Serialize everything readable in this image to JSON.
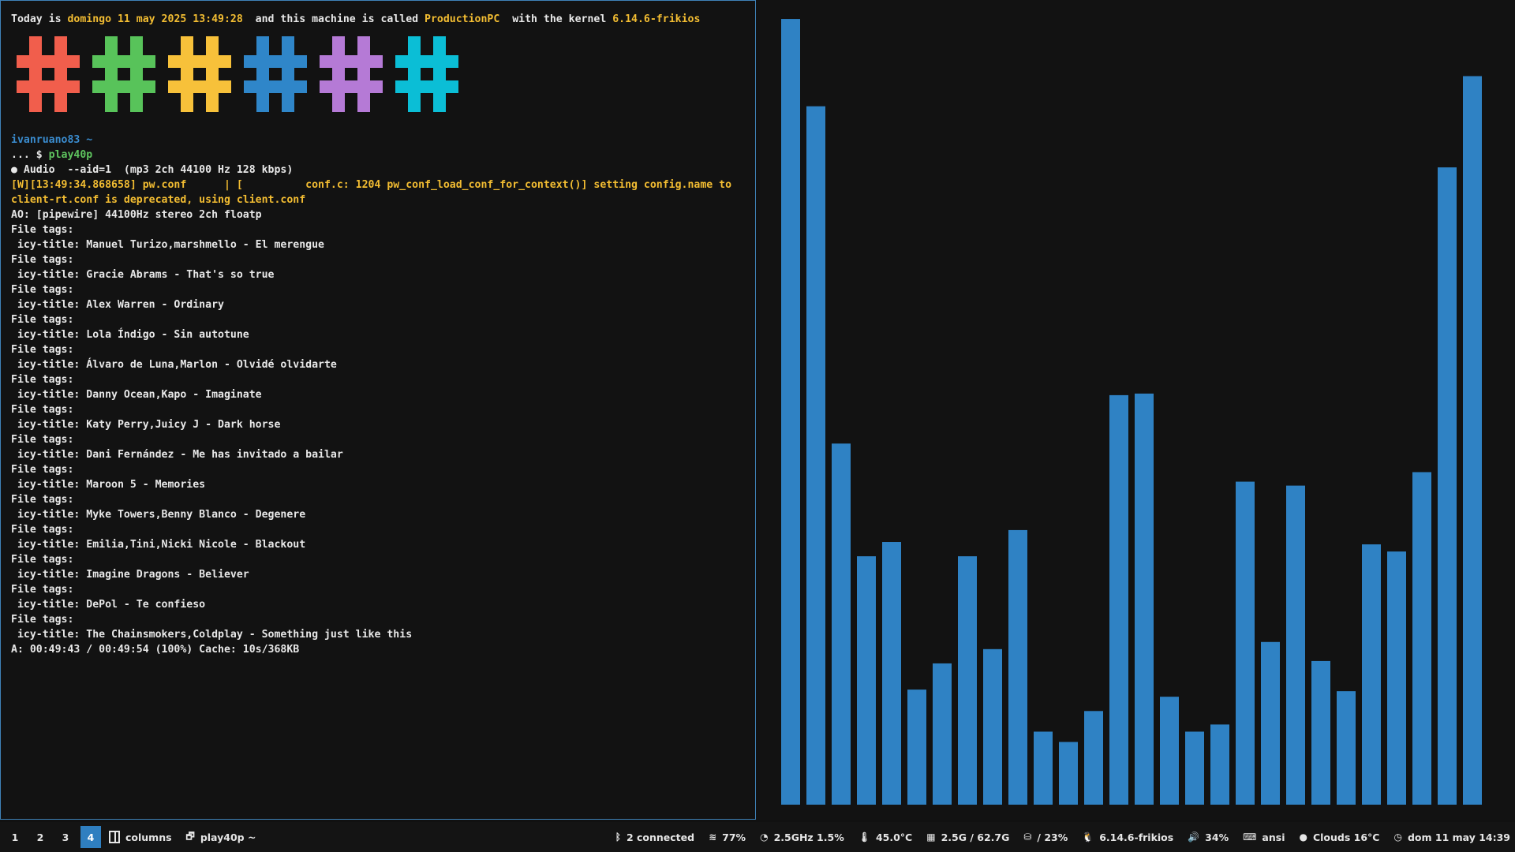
{
  "terminal": {
    "header": {
      "prefix": "Today is ",
      "date": "domingo 11 may 2025 13:49:28",
      "middle": "  and this machine is called ",
      "machine": "ProductionPC",
      "kernel_prefix": "  with the kernel ",
      "kernel": "6.14.6-frikios"
    },
    "logo_colors": [
      "#f15e4c",
      "#58c35a",
      "#f7c13a",
      "#2f86c9",
      "#b57ad6",
      "#0bbed6"
    ],
    "prompt_user": "ivanruano83 ~",
    "prompt_prefix": "... $ ",
    "prompt_command": "play40p",
    "audio_line": "● Audio  --aid=1  (mp3 2ch 44100 Hz 128 kbps)",
    "warning_line": "[W][13:49:34.868658] pw.conf      | [          conf.c: 1204 pw_conf_load_conf_for_context()] setting config.name to client-rt.conf is deprecated, using client.conf",
    "ao_line": "AO: [pipewire] 44100Hz stereo 2ch floatp",
    "file_tags_label": "File tags:",
    "tracks": [
      " icy-title: Manuel Turizo,marshmello - El merengue",
      " icy-title: Gracie Abrams - That's so true",
      " icy-title: Alex Warren - Ordinary",
      " icy-title: Lola Índigo - Sin autotune",
      " icy-title: Álvaro de Luna,Marlon - Olvidé olvidarte",
      " icy-title: Danny Ocean,Kapo - Imaginate",
      " icy-title: Katy Perry,Juicy J - Dark horse",
      " icy-title: Dani Fernández - Me has invitado a bailar",
      " icy-title: Maroon 5 - Memories",
      " icy-title: Myke Towers,Benny Blanco - Degenere",
      " icy-title: Emilia,Tini,Nicki Nicole - Blackout",
      " icy-title: Imagine Dragons - Believer",
      " icy-title: DePol - Te confieso",
      " icy-title: The Chainsmokers,Coldplay - Something just like this"
    ],
    "status_line": "A: 00:49:43 / 00:49:54 (100%) Cache: 10s/368KB"
  },
  "visualizer": {
    "bar_color": "#2f82c4",
    "levels": [
      0.99,
      0.88,
      0.455,
      0.313,
      0.331,
      0.145,
      0.178,
      0.313,
      0.196,
      0.346,
      0.092,
      0.079,
      0.118,
      0.516,
      0.518,
      0.136,
      0.092,
      0.101,
      0.407,
      0.205,
      0.402,
      0.181,
      0.143,
      0.328,
      0.319,
      0.419,
      0.803,
      0.918
    ]
  },
  "statusbar": {
    "workspaces": [
      "1",
      "2",
      "3",
      "4"
    ],
    "active_workspace": "4",
    "layout_label": "columns",
    "window_title": "play40p ~",
    "bluetooth": "2 connected",
    "wifi": "77%",
    "cpu": "2.5GHz 1.5%",
    "temperature": "45.0°C",
    "memory": "2.5G / 62.7G",
    "disk": " / 23%",
    "kernel": "6.14.6-frikios",
    "volume": "34%",
    "keyboard": "ansi",
    "weather": "Clouds 16°C",
    "clock": "dom 11 may 14:39"
  }
}
